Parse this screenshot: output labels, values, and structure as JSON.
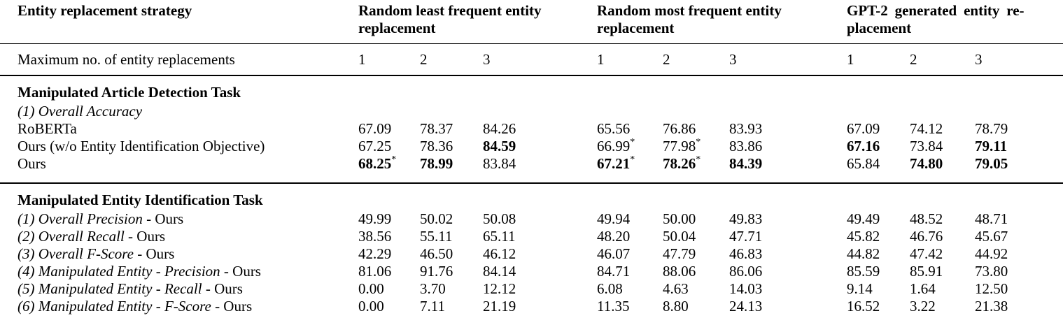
{
  "header": {
    "strategy_col": "Entity replacement strategy",
    "groups": [
      "Random least frequent entity\nreplacement",
      "Random most frequent entity\nreplacement",
      "GPT-2 generated entity re-\nplacement"
    ]
  },
  "subheader": {
    "label": "Maximum no. of entity replacements",
    "replacement_counts": [
      "1",
      "2",
      "3",
      "1",
      "2",
      "3",
      "1",
      "2",
      "3"
    ]
  },
  "sections": [
    {
      "title": "Manipulated Article Detection Task",
      "rows": [
        {
          "label_italic": "(1) Overall Accuracy",
          "label_roman": "",
          "cells": []
        },
        {
          "label_italic": "",
          "label_roman": "RoBERTa",
          "cells": [
            {
              "v": "67.09"
            },
            {
              "v": "78.37"
            },
            {
              "v": "84.26"
            },
            {
              "v": "65.56"
            },
            {
              "v": "76.86"
            },
            {
              "v": "83.93"
            },
            {
              "v": "67.09"
            },
            {
              "v": "74.12"
            },
            {
              "v": "78.79"
            }
          ]
        },
        {
          "label_italic": "",
          "label_roman": "Ours (w/o Entity Identification Objective)",
          "cells": [
            {
              "v": "67.25"
            },
            {
              "v": "78.36"
            },
            {
              "v": "84.59",
              "bold": true
            },
            {
              "v": "66.99",
              "star": true
            },
            {
              "v": "77.98",
              "star": true
            },
            {
              "v": "83.86"
            },
            {
              "v": "67.16",
              "bold": true
            },
            {
              "v": "73.84"
            },
            {
              "v": "79.11",
              "bold": true
            }
          ]
        },
        {
          "label_italic": "",
          "label_roman": "Ours",
          "cells": [
            {
              "v": "68.25",
              "bold": true,
              "star": true
            },
            {
              "v": "78.99",
              "bold": true
            },
            {
              "v": "83.84"
            },
            {
              "v": "67.21",
              "bold": true,
              "star": true
            },
            {
              "v": "78.26",
              "bold": true,
              "star": true
            },
            {
              "v": "84.39",
              "bold": true
            },
            {
              "v": "65.84"
            },
            {
              "v": "74.80",
              "bold": true
            },
            {
              "v": "79.05",
              "bold": true
            }
          ]
        }
      ]
    },
    {
      "title": "Manipulated Entity Identification Task",
      "rows": [
        {
          "label_italic": "(1) Overall Precision",
          "label_roman": " - Ours",
          "cells": [
            {
              "v": "49.99"
            },
            {
              "v": "50.02"
            },
            {
              "v": "50.08"
            },
            {
              "v": "49.94"
            },
            {
              "v": "50.00"
            },
            {
              "v": "49.83"
            },
            {
              "v": "49.49"
            },
            {
              "v": "48.52"
            },
            {
              "v": "48.71"
            }
          ]
        },
        {
          "label_italic": "(2) Overall Recall",
          "label_roman": " - Ours",
          "cells": [
            {
              "v": "38.56"
            },
            {
              "v": "55.11"
            },
            {
              "v": "65.11"
            },
            {
              "v": "48.20"
            },
            {
              "v": "50.04"
            },
            {
              "v": "47.71"
            },
            {
              "v": "45.82"
            },
            {
              "v": "46.76"
            },
            {
              "v": "45.67"
            }
          ]
        },
        {
          "label_italic": "(3) Overall F-Score",
          "label_roman": " - Ours",
          "cells": [
            {
              "v": "42.29"
            },
            {
              "v": "46.50"
            },
            {
              "v": "46.12"
            },
            {
              "v": "46.07"
            },
            {
              "v": "47.79"
            },
            {
              "v": "46.83"
            },
            {
              "v": "44.82"
            },
            {
              "v": "47.42"
            },
            {
              "v": "44.92"
            }
          ]
        },
        {
          "label_italic": "(4) Manipulated Entity - Precision",
          "label_roman": " - Ours",
          "cells": [
            {
              "v": "81.06"
            },
            {
              "v": "91.76"
            },
            {
              "v": "84.14"
            },
            {
              "v": "84.71"
            },
            {
              "v": "88.06"
            },
            {
              "v": "86.06"
            },
            {
              "v": "85.59"
            },
            {
              "v": "85.91"
            },
            {
              "v": "73.80"
            }
          ]
        },
        {
          "label_italic": "(5) Manipulated Entity - Recall",
          "label_roman": " - Ours",
          "cells": [
            {
              "v": "0.00"
            },
            {
              "v": "3.70"
            },
            {
              "v": "12.12"
            },
            {
              "v": "6.08"
            },
            {
              "v": "4.63"
            },
            {
              "v": "14.03"
            },
            {
              "v": "9.14"
            },
            {
              "v": "1.64"
            },
            {
              "v": "12.50"
            }
          ]
        },
        {
          "label_italic": "(6) Manipulated Entity - F-Score",
          "label_roman": " - Ours",
          "cells": [
            {
              "v": "0.00"
            },
            {
              "v": "7.11"
            },
            {
              "v": "21.19"
            },
            {
              "v": "11.35"
            },
            {
              "v": "8.80"
            },
            {
              "v": "24.13"
            },
            {
              "v": "16.52"
            },
            {
              "v": "3.22"
            },
            {
              "v": "21.38"
            }
          ]
        }
      ]
    }
  ]
}
